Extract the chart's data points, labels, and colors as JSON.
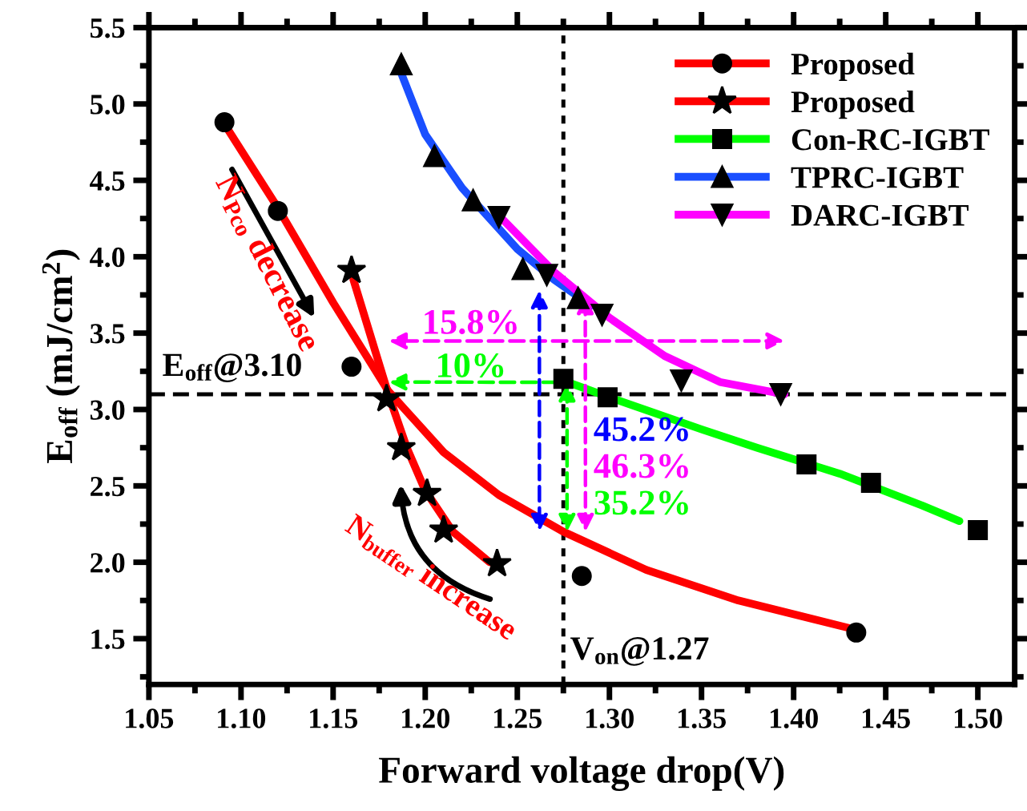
{
  "chart_data": {
    "type": "scatter",
    "xlabel": "Forward voltage drop(V)",
    "ylabel": "E$_{off}$ (mJ/cm$^{2}$)",
    "xlim": [
      1.05,
      1.52
    ],
    "ylim": [
      1.2,
      5.5
    ],
    "xticks": [
      {
        "value": 1.05,
        "label": "1.05"
      },
      {
        "value": 1.1,
        "label": "1.10"
      },
      {
        "value": 1.15,
        "label": "1.15"
      },
      {
        "value": 1.2,
        "label": "1.20"
      },
      {
        "value": 1.25,
        "label": "1.25"
      },
      {
        "value": 1.3,
        "label": "1.30"
      },
      {
        "value": 1.35,
        "label": "1.35"
      },
      {
        "value": 1.4,
        "label": "1.40"
      },
      {
        "value": 1.45,
        "label": "1.45"
      },
      {
        "value": 1.5,
        "label": "1.50"
      }
    ],
    "yticks": [
      1.5,
      {
        "value": 2,
        "label": "2.0"
      },
      2.5,
      {
        "value": 3,
        "label": "3.0"
      },
      3.5,
      {
        "value": 4,
        "label": "4.0"
      },
      4.5,
      {
        "value": 5,
        "label": "5.0"
      },
      5.5
    ],
    "grid": false,
    "legend": "top right",
    "series": [
      {
        "name": "Proposed",
        "marker": "circle",
        "color": "#000000",
        "x": [
          1.091,
          1.12,
          1.16,
          1.285,
          1.434
        ],
        "values": [
          4.88,
          4.3,
          3.28,
          1.91,
          1.54
        ]
      },
      {
        "type": "line",
        "color": "#ff0000",
        "x": [
          1.092,
          1.12,
          1.15,
          1.18,
          1.21,
          1.24,
          1.275,
          1.32,
          1.37,
          1.43
        ],
        "values": [
          4.85,
          4.32,
          3.7,
          3.12,
          2.72,
          2.44,
          2.2,
          1.95,
          1.75,
          1.57
        ]
      },
      {
        "name": "Proposed",
        "marker": "star",
        "color": "#000000",
        "x": [
          1.16,
          1.179,
          1.187,
          1.201,
          1.21,
          1.239
        ],
        "values": [
          3.91,
          3.07,
          2.75,
          2.45,
          2.21,
          1.99
        ]
      },
      {
        "type": "line",
        "color": "#ff0000",
        "x": [
          1.161,
          1.18,
          1.19,
          1.2,
          1.215,
          1.235
        ],
        "values": [
          3.85,
          3.1,
          2.75,
          2.47,
          2.2,
          2.0
        ]
      },
      {
        "name": "Con-RC-IGBT",
        "marker": "square",
        "color": "#000000",
        "x": [
          1.275,
          1.299,
          1.407,
          1.442,
          1.5
        ],
        "values": [
          3.2,
          3.08,
          2.64,
          2.52,
          2.21
        ]
      },
      {
        "type": "line",
        "color": "#00ff00",
        "x": [
          1.277,
          1.3,
          1.35,
          1.38,
          1.425,
          1.47,
          1.49
        ],
        "values": [
          3.18,
          3.08,
          2.87,
          2.75,
          2.58,
          2.37,
          2.27
        ]
      },
      {
        "name": "TPRC-IGBT",
        "marker": "triangle",
        "color": "#000000",
        "x": [
          1.187,
          1.205,
          1.226,
          1.253,
          1.283
        ],
        "values": [
          5.26,
          4.66,
          4.37,
          3.92,
          3.73
        ]
      },
      {
        "type": "line",
        "color": "#1a4fff",
        "x": [
          1.187,
          1.2,
          1.22,
          1.25,
          1.27,
          1.29
        ],
        "values": [
          5.2,
          4.8,
          4.45,
          4.05,
          3.85,
          3.68
        ]
      },
      {
        "name": "DARC-IGBT",
        "marker": "triangle_down",
        "color": "#000000",
        "x": [
          1.24,
          1.266,
          1.296,
          1.339,
          1.393
        ],
        "values": [
          4.26,
          3.88,
          3.62,
          3.19,
          3.1
        ]
      },
      {
        "type": "line",
        "color": "#ff00ff",
        "x": [
          1.24,
          1.27,
          1.3,
          1.33,
          1.36,
          1.395
        ],
        "values": [
          4.27,
          3.9,
          3.6,
          3.35,
          3.18,
          3.1
        ]
      }
    ],
    "ref_lines": [
      {
        "axis": "y",
        "value": 3.1,
        "label": "E$_{off}$@3.10",
        "color": "#000000",
        "line_style": "dashed"
      },
      {
        "axis": "x",
        "value": 1.275,
        "label": "V$_{on}$@1.27",
        "color": "#000000",
        "line_style": "dotted"
      }
    ],
    "annotations": [
      "15.8%",
      {
        "text": "10%",
        "x": 1.18,
        "y": 3.18
      },
      {
        "text": "45.2%",
        "x": 1.262,
        "y": 2.2
      },
      {
        "text": "46.3%",
        "x": 1.287,
        "y": 2.2
      },
      {
        "text": "35.2%",
        "x": 1.277,
        "y": 2.2
      },
      "N$_{Pco}$ decrease",
      "N$_{buffer}$ increase"
    ]
  }
}
